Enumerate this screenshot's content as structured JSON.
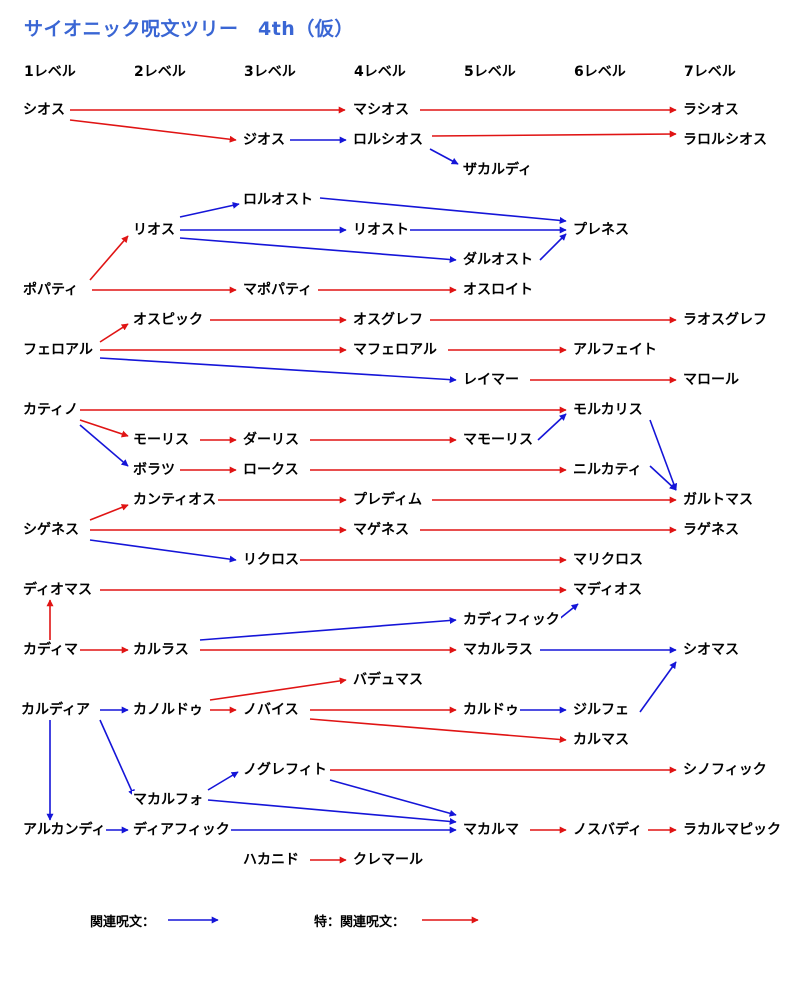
{
  "title": "サイオニック呪文ツリー　4th（仮）",
  "levels": [
    "1レベル",
    "2レベル",
    "3レベル",
    "4レベル",
    "5レベル",
    "6レベル",
    "7レベル"
  ],
  "nodes": {
    "shiosu": "シオス",
    "mashiosu": "マシオス",
    "rashiosu": "ラシオス",
    "jiosu": "ジオス",
    "rorushiosu": "ロルシオス",
    "rarorushiosu": "ラロルシオス",
    "zakarudi": "ザカルディ",
    "roruosuto": "ロルオスト",
    "riosu": "リオス",
    "riosuto": "リオスト",
    "purenesu": "プレネス",
    "daruosuto": "ダルオスト",
    "popati": "ポパティ",
    "mapopati": "マポパティ",
    "osuroito": "オスロイト",
    "osupikku": "オスピック",
    "osugurefu": "オスグレフ",
    "raosugurefu": "ラオスグレフ",
    "feroaru": "フェロアル",
    "maferoaru": "マフェロアル",
    "arufeito": "アルフェイト",
    "reima": "レイマー",
    "maroru": "マロール",
    "katino": "カティノ",
    "morukarisu": "モルカリス",
    "morisu": "モーリス",
    "darisu": "ダーリス",
    "mamorisu": "マモーリス",
    "boratsu": "ボラツ",
    "rokusu": "ロークス",
    "nirukati": "ニルカティ",
    "garutomasu": "ガルトマス",
    "kantiosu": "カンティオス",
    "puredimu": "プレディム",
    "shigenesu": "シゲネス",
    "magenesu": "マゲネス",
    "ragenesu": "ラゲネス",
    "rikurosu": "リクロス",
    "marikurosu": "マリクロス",
    "diomasu": "ディオマス",
    "madiosu": "マディオス",
    "kadifikku": "カディフィック",
    "kadima": "カディマ",
    "karurasu": "カルラス",
    "makarurasu": "マカルラス",
    "shiomasu": "シオマス",
    "badyumasu": "バデュマス",
    "karudia": "カルディア",
    "kanorudu": "カノルドゥ",
    "nobaisu": "ノバイス",
    "karudu": "カルドゥ",
    "jirufe": "ジルフェ",
    "karumasu": "カルマス",
    "noguerefito": "ノグレフィト",
    "shinofikku": "シノフィック",
    "makarufo": "マカルフォ",
    "arukandi": "アルカンディ",
    "diafikku": "ディアフィック",
    "makaruma": "マカルマ",
    "nosubadi": "ノスバディ",
    "rakarumapikku": "ラカルマピック",
    "hakanido": "ハカニド",
    "kuremaru": "クレマール"
  },
  "colors": {
    "related": "#1515d8",
    "special": "#e01414",
    "title": "#3a66d4"
  },
  "legend": {
    "related_label": "関連呪文：",
    "special_label": "特：関連呪文："
  }
}
